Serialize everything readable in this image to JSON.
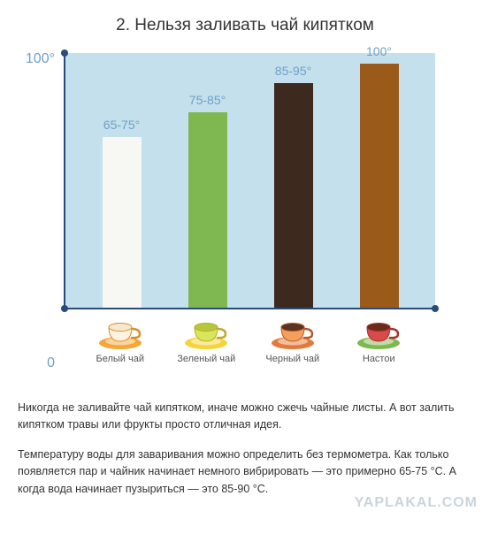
{
  "title": "2. Нельзя заливать чай кипятком",
  "chart": {
    "type": "bar",
    "background_color": "#c4e0ed",
    "axis_color": "#2a4a7a",
    "label_color": "#6ea0c9",
    "ylim": [
      0,
      100
    ],
    "y_top_label": "100°",
    "y_bot_label": "0",
    "label_fontsize": 14,
    "bars": [
      {
        "label": "65-75°",
        "value": 70,
        "color": "#f7f7f4",
        "name": "Белый чай",
        "cup": {
          "saucer": "#f4a63a",
          "cup_fill": "#fdf3e0",
          "liquid": "#f5e9d0",
          "rim": "#d88e2a"
        }
      },
      {
        "label": "75-85°",
        "value": 80,
        "color": "#7fb850",
        "name": "Зеленый чай",
        "cup": {
          "saucer": "#f4d43a",
          "cup_fill": "#d8e659",
          "liquid": "#b3c93a",
          "rim": "#c0a82a"
        }
      },
      {
        "label": "85-95°",
        "value": 92,
        "color": "#3d2a1f",
        "name": "Черный чай",
        "cup": {
          "saucer": "#e27a3a",
          "cup_fill": "#f5a05a",
          "liquid": "#5a3420",
          "rim": "#b55a2a"
        }
      },
      {
        "label": "100°",
        "value": 100,
        "color": "#9a5a1a",
        "name": "Настои",
        "cup": {
          "saucer": "#7fb850",
          "cup_fill": "#d94a4a",
          "liquid": "#6a2a1a",
          "rim": "#a83030"
        }
      }
    ]
  },
  "paragraphs": [
    "Никогда не заливайте чай кипятком, иначе можно сжечь чайные листы. А вот залить кипятком травы или фрукты просто отличная идея.",
    "Температуру воды для заваривания можно определить без термометра. Как только появляется пар и чайник начинает немного вибрировать — это примерно 65-75 °C. А когда вода начинает пузыриться — это 85-90 °C."
  ],
  "watermark": "YAPLAKAL.COM"
}
